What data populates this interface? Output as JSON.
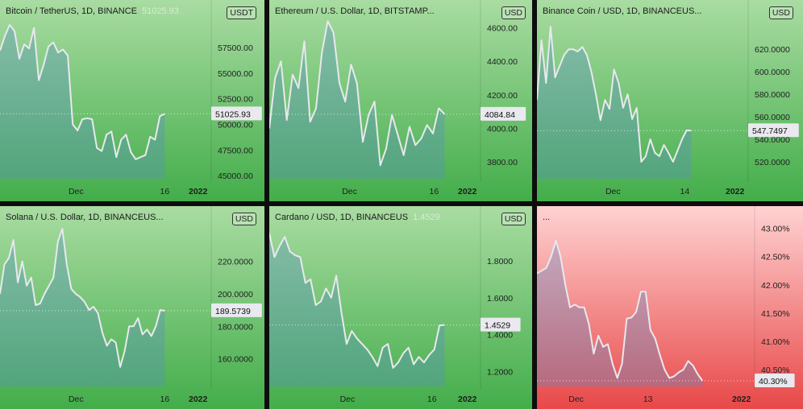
{
  "colors": {
    "green_top": "#a9dcA2",
    "green_bottom": "#43ad4a",
    "red_top": "#ffd2d2",
    "red_bottom": "#e84848",
    "line": "#e8e8ef",
    "area": "rgba(90,140,200,0.35)"
  },
  "panels": [
    {
      "title": "Bitcoin / TetherUS, 1D, BINANCE",
      "last_value_text": "51025.93",
      "currency": "USDT",
      "price_tag": "51025.93",
      "chart_data": {
        "type": "line",
        "title": "Bitcoin / TetherUS, 1D, BINANCE",
        "ylim": [
          44700,
          60400
        ],
        "yticks": [
          "57500.00",
          "55000.00",
          "52500.00",
          "50000.00",
          "47500.00",
          "45000.00"
        ],
        "ytick_values": [
          57500,
          55000,
          52500,
          50000,
          47500,
          45000
        ],
        "xticks": [
          {
            "label": "Dec",
            "x": 0.36
          },
          {
            "label": "16",
            "x": 0.78
          },
          {
            "label": "2022",
            "x": 1.0,
            "year": true
          }
        ],
        "last": 51025.93,
        "values": [
          57200,
          58600,
          59700,
          59100,
          56400,
          57800,
          57400,
          59400,
          54300,
          55800,
          57600,
          58000,
          57000,
          57300,
          56700,
          50000,
          49400,
          50500,
          50600,
          50500,
          47700,
          47400,
          49000,
          49300,
          46800,
          48500,
          49000,
          47300,
          46600,
          46800,
          47000,
          48800,
          48500,
          50800,
          51025.93
        ]
      }
    },
    {
      "title": "Ethereum / U.S. Dollar, 1D, BITSTAMP...",
      "last_value_text": "",
      "currency": "USD",
      "price_tag": "4084.84",
      "chart_data": {
        "type": "line",
        "title": "Ethereum / U.S. Dollar, 1D, BITSTAMP...",
        "ylim": [
          3700,
          4660
        ],
        "yticks": [
          "4600.00",
          "4400.00",
          "4200.00",
          "4000.00",
          "3800.00"
        ],
        "ytick_values": [
          4600,
          4400,
          4200,
          4000,
          3800
        ],
        "xticks": [
          {
            "label": "Dec",
            "x": 0.38
          },
          {
            "label": "16",
            "x": 0.78
          },
          {
            "label": "2022",
            "x": 1.0,
            "year": true
          }
        ],
        "last": 4084.84,
        "values": [
          4000,
          4300,
          4400,
          4050,
          4320,
          4240,
          4520,
          4040,
          4120,
          4450,
          4640,
          4570,
          4270,
          4160,
          4380,
          4270,
          3920,
          4080,
          4160,
          3780,
          3880,
          4080,
          3960,
          3840,
          4010,
          3900,
          3940,
          4020,
          3970,
          4120,
          4084.84
        ]
      }
    },
    {
      "title": "Binance Coin / USD, 1D, BINANCEUS...",
      "last_value_text": "",
      "currency": "USD",
      "price_tag": "547.7497",
      "chart_data": {
        "type": "line",
        "title": "Binance Coin / USD, 1D, BINANCEUS...",
        "ylim": [
          505,
          648
        ],
        "yticks": [
          "620.0000",
          "600.0000",
          "580.0000",
          "560.0000",
          "540.0000",
          "520.0000"
        ],
        "ytick_values": [
          620,
          600,
          580,
          560,
          540,
          520
        ],
        "xticks": [
          {
            "label": "Dec",
            "x": 0.36
          },
          {
            "label": "14",
            "x": 0.7
          },
          {
            "label": "2022",
            "x": 1.0,
            "year": true
          }
        ],
        "last": 547.7497,
        "values": [
          575,
          628,
          590,
          640,
          595,
          605,
          615,
          620,
          620,
          618,
          622,
          615,
          600,
          580,
          557,
          575,
          567,
          602,
          590,
          568,
          580,
          558,
          568,
          520,
          525,
          540,
          528,
          525,
          535,
          528,
          520,
          530,
          540,
          548,
          547.7497
        ]
      }
    },
    {
      "title": "Solana / U.S. Dollar, 1D, BINANCEUS...",
      "last_value_text": "",
      "currency": "USD",
      "price_tag": "189.5739",
      "chart_data": {
        "type": "line",
        "title": "Solana / U.S. Dollar, 1D, BINANCEUS...",
        "ylim": [
          143,
          243
        ],
        "yticks": [
          "220.0000",
          "200.0000",
          "180.0000",
          "160.0000"
        ],
        "ytick_values": [
          220,
          200,
          180,
          160
        ],
        "xticks": [
          {
            "label": "Dec",
            "x": 0.36
          },
          {
            "label": "16",
            "x": 0.78
          },
          {
            "label": "2022",
            "x": 1.0,
            "year": true
          }
        ],
        "last": 189.5739,
        "values": [
          200,
          218,
          222,
          233,
          207,
          220,
          205,
          210,
          193,
          194,
          200,
          205,
          210,
          232,
          240,
          218,
          203,
          200,
          198,
          195,
          190,
          192,
          188,
          176,
          168,
          172,
          170,
          155,
          165,
          180,
          180,
          185,
          175,
          178,
          174,
          180,
          190,
          189.5739
        ]
      }
    },
    {
      "title": "Cardano / USD, 1D, BINANCEUS",
      "last_value_text": "1.4529",
      "currency": "USD",
      "price_tag": "1.4529",
      "chart_data": {
        "type": "line",
        "title": "Cardano / USD, 1D, BINANCEUS",
        "ylim": [
          1.12,
          2.0
        ],
        "yticks": [
          "1.8000",
          "1.6000",
          "1.4000",
          "1.2000"
        ],
        "ytick_values": [
          1.8,
          1.6,
          1.4,
          1.2
        ],
        "xticks": [
          {
            "label": "Dec",
            "x": 0.37
          },
          {
            "label": "16",
            "x": 0.77
          },
          {
            "label": "2022",
            "x": 1.0,
            "year": true
          }
        ],
        "last": 1.4529,
        "values": [
          1.95,
          1.82,
          1.88,
          1.93,
          1.85,
          1.83,
          1.82,
          1.68,
          1.7,
          1.56,
          1.58,
          1.65,
          1.6,
          1.72,
          1.52,
          1.35,
          1.42,
          1.38,
          1.35,
          1.32,
          1.28,
          1.23,
          1.33,
          1.35,
          1.22,
          1.25,
          1.3,
          1.33,
          1.24,
          1.28,
          1.25,
          1.29,
          1.32,
          1.45,
          1.4529
        ]
      }
    },
    {
      "title": "...",
      "last_value_text": "",
      "currency": "",
      "price_tag": "40.30%",
      "chart_data": {
        "type": "line",
        "title": "...",
        "ylim": [
          40.2,
          43.08
        ],
        "yticks": [
          "43.00%",
          "42.50%",
          "42.00%",
          "41.50%",
          "41.00%",
          "40.50%"
        ],
        "ytick_values": [
          43.0,
          42.5,
          42.0,
          41.5,
          41.0,
          40.5
        ],
        "xticks": [
          {
            "label": "Dec",
            "x": 0.18
          },
          {
            "label": "13",
            "x": 0.51
          },
          {
            "label": "2022",
            "x": 1.0,
            "year": true
          }
        ],
        "last": 40.3,
        "values": [
          42.2,
          42.25,
          42.3,
          42.5,
          42.78,
          42.5,
          42.0,
          41.6,
          41.65,
          41.6,
          41.6,
          41.3,
          40.78,
          41.1,
          40.9,
          40.95,
          40.6,
          40.35,
          40.6,
          41.4,
          41.42,
          41.52,
          41.88,
          41.88,
          41.2,
          41.05,
          40.76,
          40.5,
          40.35,
          40.38,
          40.45,
          40.5,
          40.65,
          40.57,
          40.42,
          40.3
        ]
      }
    }
  ]
}
